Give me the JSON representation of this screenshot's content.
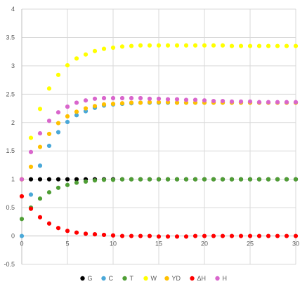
{
  "chart_data": {
    "type": "scatter",
    "title": "",
    "xlabel": "",
    "ylabel": "",
    "xlim": [
      0,
      30
    ],
    "ylim": [
      -0.5,
      4
    ],
    "grid": true,
    "legend": "bottom",
    "x_ticks": [
      "0",
      "5",
      "10",
      "15",
      "20",
      "25",
      "30"
    ],
    "y_ticks": [
      "-0.5",
      "0",
      "0.5",
      "1",
      "1.5",
      "2",
      "2.5",
      "3",
      "3.5",
      "4"
    ],
    "x": [
      0,
      1,
      2,
      3,
      4,
      5,
      6,
      7,
      8,
      9,
      10,
      11,
      12,
      13,
      14,
      15,
      16,
      17,
      18,
      19,
      20,
      21,
      22,
      23,
      24,
      25,
      26,
      27,
      28,
      29,
      30
    ],
    "series": [
      {
        "name": "G",
        "color": "#000000",
        "values": [
          1,
          1,
          1,
          1,
          1,
          1,
          1,
          1,
          1,
          1,
          1,
          1,
          1,
          1,
          1,
          1,
          1,
          1,
          1,
          1,
          1,
          1,
          1,
          1,
          1,
          1,
          1,
          1,
          1,
          1,
          1
        ]
      },
      {
        "name": "C",
        "color": "#4aa8d8",
        "values": [
          0.0,
          0.73,
          1.24,
          1.59,
          1.83,
          2.01,
          2.13,
          2.2,
          2.26,
          2.3,
          2.32,
          2.33,
          2.34,
          2.35,
          2.35,
          2.35,
          2.35,
          2.35,
          2.35,
          2.35,
          2.35,
          2.35,
          2.35,
          2.35,
          2.35,
          2.35,
          2.35,
          2.35,
          2.35,
          2.35,
          2.35
        ]
      },
      {
        "name": "T",
        "color": "#4f9e35",
        "values": [
          0.3,
          0.5,
          0.66,
          0.77,
          0.85,
          0.9,
          0.94,
          0.96,
          0.98,
          0.99,
          0.99,
          1,
          1,
          1,
          1,
          1,
          1,
          1,
          1,
          1,
          1,
          1,
          1,
          1,
          1,
          1,
          1,
          1,
          1,
          1,
          1
        ]
      },
      {
        "name": "W",
        "color": "#ffff00",
        "values": [
          1.0,
          1.73,
          2.24,
          2.6,
          2.84,
          3.01,
          3.13,
          3.2,
          3.26,
          3.3,
          3.32,
          3.34,
          3.35,
          3.36,
          3.36,
          3.36,
          3.36,
          3.36,
          3.36,
          3.36,
          3.36,
          3.36,
          3.36,
          3.35,
          3.35,
          3.35,
          3.35,
          3.35,
          3.35,
          3.35,
          3.35
        ]
      },
      {
        "name": "YD",
        "color": "#ffc000",
        "values": [
          1.0,
          1.22,
          1.57,
          1.8,
          1.99,
          2.11,
          2.19,
          2.25,
          2.29,
          2.32,
          2.33,
          2.34,
          2.35,
          2.35,
          2.36,
          2.36,
          2.36,
          2.35,
          2.35,
          2.35,
          2.35,
          2.35,
          2.35,
          2.35,
          2.35,
          2.35,
          2.35,
          2.35,
          2.35,
          2.35,
          2.35
        ]
      },
      {
        "name": "ΔH",
        "color": "#ff0000",
        "values": [
          0.7,
          0.48,
          0.33,
          0.22,
          0.14,
          0.09,
          0.06,
          0.04,
          0.03,
          0.02,
          0.01,
          0.0,
          0.0,
          0.0,
          0.0,
          -0.01,
          -0.01,
          -0.01,
          -0.01,
          0.0,
          0.0,
          0.0,
          0.0,
          0.0,
          0.0,
          0.0,
          0.0,
          0.0,
          0.0,
          0.0,
          0.0
        ]
      },
      {
        "name": "H",
        "color": "#d966cc",
        "values": [
          1.0,
          1.48,
          1.81,
          2.03,
          2.18,
          2.28,
          2.35,
          2.39,
          2.42,
          2.43,
          2.43,
          2.43,
          2.43,
          2.43,
          2.42,
          2.42,
          2.41,
          2.41,
          2.4,
          2.4,
          2.39,
          2.38,
          2.38,
          2.37,
          2.37,
          2.37,
          2.36,
          2.36,
          2.36,
          2.36,
          2.36
        ]
      }
    ]
  }
}
